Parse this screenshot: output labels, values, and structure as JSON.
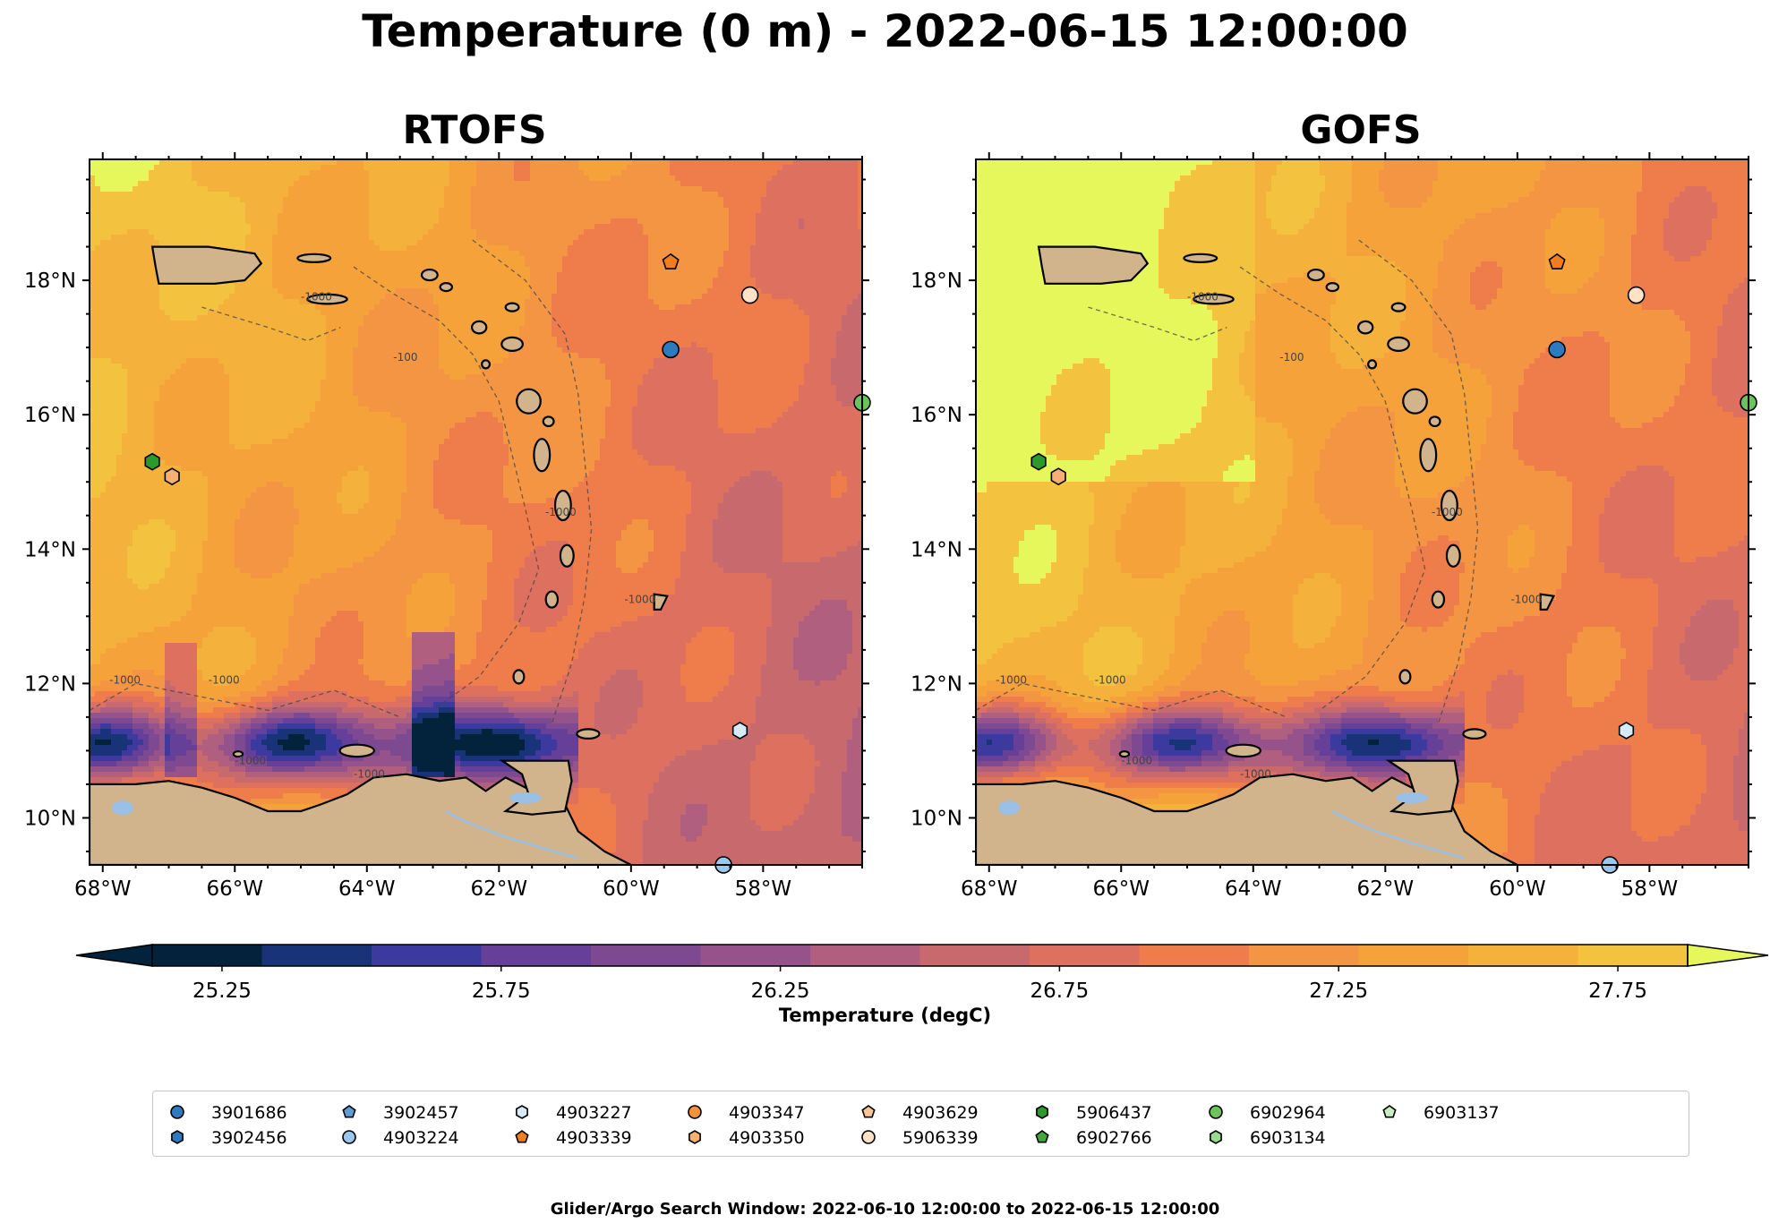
{
  "figure": {
    "title": "Temperature (0 m) - 2022-06-15 12:00:00",
    "footer": "Glider/Argo Search Window: 2022-06-10 12:00:00 to 2022-06-15 12:00:00"
  },
  "chart_data": [
    {
      "type": "heatmap",
      "title": "RTOFS",
      "xlim": [
        -68.2,
        -56.5
      ],
      "ylim": [
        9.3,
        19.8
      ],
      "x_ticks": [
        -68,
        -66,
        -64,
        -62,
        -60,
        -58
      ],
      "x_tick_labels": [
        "68°W",
        "66°W",
        "64°W",
        "62°W",
        "60°W",
        "58°W"
      ],
      "y_ticks": [
        10,
        12,
        14,
        16,
        18
      ],
      "y_tick_labels": [
        "10°N",
        "12°N",
        "14°N",
        "16°N",
        "18°N"
      ],
      "contour_labels": [
        "-1000",
        "-100"
      ]
    },
    {
      "type": "heatmap",
      "title": "GOFS",
      "xlim": [
        -68.2,
        -56.5
      ],
      "ylim": [
        9.3,
        19.8
      ],
      "x_ticks": [
        -68,
        -66,
        -64,
        -62,
        -60,
        -58
      ],
      "x_tick_labels": [
        "68°W",
        "66°W",
        "64°W",
        "62°W",
        "60°W",
        "58°W"
      ],
      "y_ticks": [
        10,
        12,
        14,
        16,
        18
      ],
      "y_tick_labels": [
        "10°N",
        "12°N",
        "14°N",
        "16°N",
        "18°N"
      ],
      "contour_labels": [
        "-1000",
        "-100"
      ]
    }
  ],
  "colorbar": {
    "label": "Temperature (degC)",
    "vmin": 25.0,
    "vmax": 28.0,
    "step": 0.125,
    "extend": "both",
    "ticks": [
      25.25,
      25.75,
      26.25,
      26.75,
      27.25,
      27.75
    ],
    "tick_labels": [
      "25.25",
      "25.75",
      "26.25",
      "26.75",
      "27.25",
      "27.75"
    ],
    "colors": [
      "#03223c",
      "#193379",
      "#3c3a9e",
      "#663f98",
      "#7d4a92",
      "#96528b",
      "#b15f7f",
      "#c86a6d",
      "#de7060",
      "#ef7d4b",
      "#f49543",
      "#f5a23b",
      "#f4b23c",
      "#f3c23f",
      "#e5f75a"
    ]
  },
  "land_color": "#d1b48c",
  "lake_color": "#9ac0e8",
  "floats": [
    {
      "id": "3901686",
      "marker": "circle",
      "color": "#2c7ac0",
      "lon": -59.4,
      "lat": 16.97
    },
    {
      "id": "3902456",
      "marker": "hexagon",
      "color": "#2c7ac0",
      "lon": null,
      "lat": null
    },
    {
      "id": "3902457",
      "marker": "pentagon",
      "color": "#5c9fd6",
      "lon": null,
      "lat": null
    },
    {
      "id": "4903224",
      "marker": "circle",
      "color": "#9ac7ec",
      "lon": -58.6,
      "lat": 9.3
    },
    {
      "id": "4903227",
      "marker": "hexagon",
      "color": "#d6ebf8",
      "lon": -58.35,
      "lat": 11.3
    },
    {
      "id": "4903339",
      "marker": "pentagon",
      "color": "#f07d1e",
      "lon": -59.4,
      "lat": 18.27
    },
    {
      "id": "4903347",
      "marker": "circle",
      "color": "#f5913a",
      "lon": null,
      "lat": null
    },
    {
      "id": "4903350",
      "marker": "hexagon",
      "color": "#f8b072",
      "lon": null,
      "lat": null
    },
    {
      "id": "4903629",
      "marker": "pentagon",
      "color": "#f8c690",
      "lon": null,
      "lat": null
    },
    {
      "id": "5906339",
      "marker": "circle",
      "color": "#fde2c6",
      "lon": -58.2,
      "lat": 17.78
    },
    {
      "id": "5906437",
      "marker": "hexagon",
      "color": "#2b9a2b",
      "lon": -67.25,
      "lat": 15.3
    },
    {
      "id": "6902766",
      "marker": "pentagon",
      "color": "#41a93a",
      "lon": null,
      "lat": null
    },
    {
      "id": "6902964",
      "marker": "circle",
      "color": "#6ac45a",
      "lon": -56.5,
      "lat": 16.18
    },
    {
      "id": "6903134",
      "marker": "hexagon",
      "color": "#99dc8c",
      "lon": null,
      "lat": null
    },
    {
      "id": "6903137",
      "marker": "pentagon",
      "color": "#c7f0bd",
      "lon": null,
      "lat": null
    }
  ],
  "extra_markers": [
    {
      "marker": "hexagon",
      "color": "#f8b072",
      "lon": -66.95,
      "lat": 15.08
    }
  ]
}
